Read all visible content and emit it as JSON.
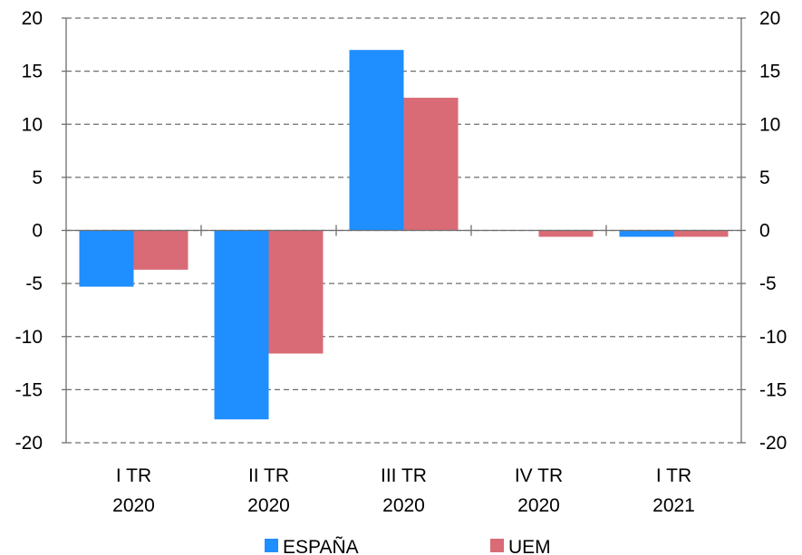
{
  "chart_data": {
    "type": "bar",
    "categories": [
      [
        "I TR",
        "2020"
      ],
      [
        "II TR",
        "2020"
      ],
      [
        "III TR",
        "2020"
      ],
      [
        "IV TR",
        "2020"
      ],
      [
        "I TR",
        "2021"
      ]
    ],
    "series": [
      {
        "name": "ESPAÑA",
        "color": "#1f8fff",
        "values": [
          -5.3,
          -17.8,
          17.0,
          0.0,
          -0.6
        ]
      },
      {
        "name": "UEM",
        "color": "#d96b77",
        "values": [
          -3.7,
          -11.6,
          12.5,
          -0.6,
          -0.6
        ]
      }
    ],
    "ylim": [
      -20,
      20
    ],
    "yticks": [
      "20",
      "15",
      "10",
      "5",
      "0",
      "-5",
      "-10",
      "-15",
      "-20"
    ],
    "ytick_values": [
      20,
      15,
      10,
      5,
      0,
      -5,
      -10,
      -15,
      -20
    ],
    "grid": true,
    "grid_style": "dashed",
    "legend_position": "bottom",
    "title": "",
    "xlabel": "",
    "ylabel": ""
  }
}
